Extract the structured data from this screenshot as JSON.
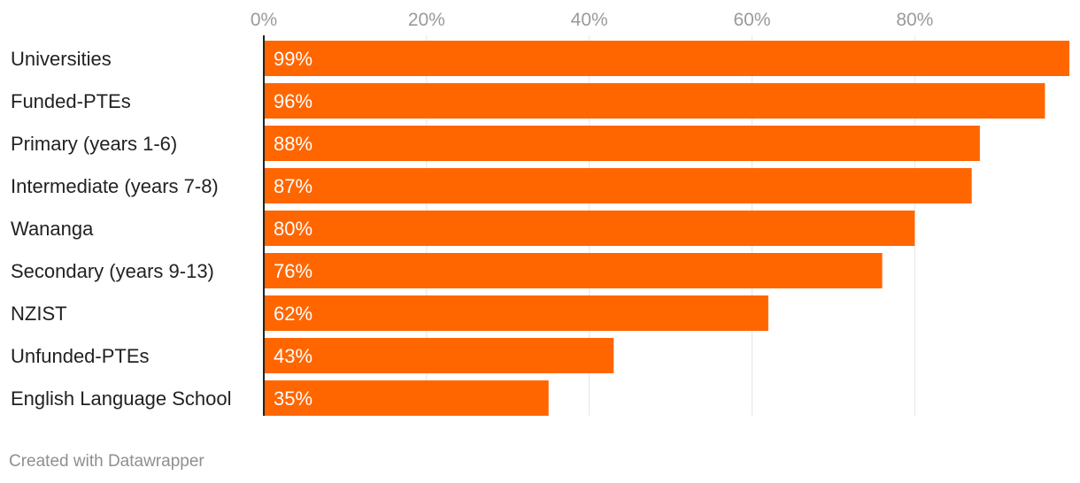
{
  "chart_data": {
    "type": "bar",
    "orientation": "horizontal",
    "categories": [
      "Universities",
      "Funded-PTEs",
      "Primary (years 1-6)",
      "Intermediate (years 7-8)",
      "Wananga",
      "Secondary (years 9-13)",
      "NZIST",
      "Unfunded-PTEs",
      "English Language School"
    ],
    "values": [
      99,
      96,
      88,
      87,
      80,
      76,
      62,
      43,
      35
    ],
    "value_labels": [
      "99%",
      "96%",
      "88%",
      "87%",
      "80%",
      "76%",
      "62%",
      "43%",
      "35%"
    ],
    "x_ticks": [
      0,
      20,
      40,
      60,
      80
    ],
    "x_tick_labels": [
      "0%",
      "20%",
      "40%",
      "60%",
      "80%"
    ],
    "xlim": [
      0,
      99
    ],
    "axis_position": "top",
    "grid": true,
    "legend": "none",
    "title": "",
    "xlabel": "",
    "ylabel": "",
    "colors": {
      "bar": "#ff6600",
      "bar_label": "#ffffff",
      "category_label": "#222222",
      "tick_label": "#9a9a9a",
      "grid": "#e6e6e6",
      "axis": "#222222"
    }
  },
  "footer": {
    "credit": "Created with Datawrapper"
  }
}
